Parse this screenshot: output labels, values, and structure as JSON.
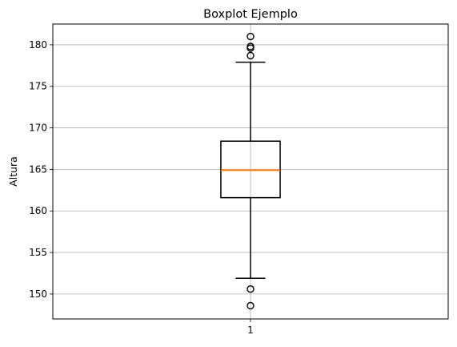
{
  "chart_data": {
    "type": "boxplot",
    "title": "Boxplot Ejemplo",
    "xlabel": "",
    "ylabel": "Altura",
    "categories": [
      "1"
    ],
    "ylim": [
      147,
      182.5
    ],
    "yticks": [
      150,
      155,
      160,
      165,
      170,
      175,
      180
    ],
    "grid": true,
    "boxes": [
      {
        "category": "1",
        "whisker_low": 151.9,
        "q1": 161.6,
        "median": 164.9,
        "q3": 168.4,
        "whisker_high": 177.9,
        "outliers": [
          181.0,
          179.8,
          179.6,
          178.7,
          150.6,
          148.6
        ]
      }
    ],
    "colors": {
      "box": "#000000",
      "median": "#ff7f0e",
      "grid": "#b0b0b0"
    }
  }
}
